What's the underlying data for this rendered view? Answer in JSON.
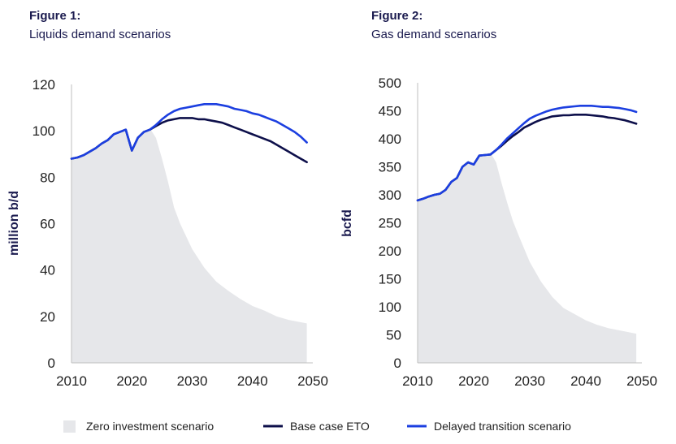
{
  "legend": [
    {
      "label": "Zero investment scenario",
      "color": "#e6e7ea",
      "kind": "area"
    },
    {
      "label": "Base case ETO",
      "color": "#0d0f4a",
      "kind": "line"
    },
    {
      "label": "Delayed transition scenario",
      "color": "#1c3fe0",
      "kind": "line"
    }
  ],
  "chart_data": [
    {
      "type": "line",
      "title": "Figure 1:",
      "subtitle": "Liquids demand scenarios",
      "ylabel": "million b/d",
      "xlabel": "",
      "xlim": [
        2010,
        2050
      ],
      "ylim": [
        0,
        120
      ],
      "xticks": [
        2010,
        2020,
        2030,
        2040,
        2050
      ],
      "yticks": [
        0,
        20,
        40,
        60,
        80,
        100,
        120
      ],
      "grid": false,
      "legend_position": "bottom",
      "area": {
        "name": "Zero investment scenario",
        "x": [
          2010,
          2012,
          2014,
          2016,
          2018,
          2019,
          2020,
          2021,
          2022,
          2023,
          2024,
          2025,
          2026,
          2027,
          2028,
          2030,
          2032,
          2034,
          2036,
          2038,
          2040,
          2042,
          2044,
          2046,
          2048,
          2049
        ],
        "values": [
          88,
          89,
          92,
          96,
          99,
          100.5,
          91.5,
          97,
          100,
          101,
          97,
          88,
          78,
          67,
          60,
          49,
          41,
          35,
          31,
          27.5,
          24.5,
          22.5,
          20,
          18.5,
          17.5,
          17
        ]
      },
      "series": [
        {
          "name": "Base case ETO",
          "color": "#0d0f4a",
          "x": [
            2010,
            2011,
            2012,
            2013,
            2014,
            2015,
            2016,
            2017,
            2018,
            2019,
            2020,
            2021,
            2022,
            2023,
            2024,
            2025,
            2026,
            2027,
            2028,
            2029,
            2030,
            2031,
            2032,
            2033,
            2034,
            2035,
            2036,
            2037,
            2038,
            2039,
            2040,
            2041,
            2042,
            2043,
            2044,
            2045,
            2046,
            2047,
            2048,
            2049
          ],
          "values": [
            88,
            88.5,
            89.5,
            91,
            92.5,
            94.5,
            96,
            98.5,
            99.5,
            100.5,
            91.5,
            97,
            99.5,
            100.5,
            102,
            103.5,
            104.5,
            105,
            105.5,
            105.5,
            105.5,
            105,
            105,
            104.5,
            104,
            103.5,
            102.5,
            101.5,
            100.5,
            99.5,
            98.5,
            97.5,
            96.5,
            95.5,
            94,
            92.5,
            91,
            89.5,
            88,
            86.5
          ]
        },
        {
          "name": "Delayed transition scenario",
          "color": "#1c3fe0",
          "x": [
            2010,
            2011,
            2012,
            2013,
            2014,
            2015,
            2016,
            2017,
            2018,
            2019,
            2020,
            2021,
            2022,
            2023,
            2024,
            2025,
            2026,
            2027,
            2028,
            2029,
            2030,
            2031,
            2032,
            2033,
            2034,
            2035,
            2036,
            2037,
            2038,
            2039,
            2040,
            2041,
            2042,
            2043,
            2044,
            2045,
            2046,
            2047,
            2048,
            2049
          ],
          "values": [
            88,
            88.5,
            89.5,
            91,
            92.5,
            94.5,
            96,
            98.5,
            99.5,
            100.5,
            91.5,
            97,
            99.5,
            100.5,
            102.5,
            105,
            107,
            108.5,
            109.5,
            110,
            110.5,
            111,
            111.5,
            111.5,
            111.5,
            111,
            110.5,
            109.5,
            109,
            108.5,
            107.5,
            107,
            106,
            105,
            104,
            102.5,
            101,
            99.5,
            97.5,
            95
          ]
        }
      ]
    },
    {
      "type": "line",
      "title": "Figure 2:",
      "subtitle": "Gas demand scenarios",
      "ylabel": "bcfd",
      "xlabel": "",
      "xlim": [
        2010,
        2050
      ],
      "ylim": [
        0,
        500
      ],
      "xticks": [
        2010,
        2020,
        2030,
        2040,
        2050
      ],
      "yticks": [
        0,
        50,
        100,
        150,
        200,
        250,
        300,
        350,
        400,
        450,
        500
      ],
      "grid": false,
      "legend_position": "bottom",
      "area": {
        "name": "Zero investment scenario",
        "x": [
          2010,
          2012,
          2014,
          2015,
          2016,
          2017,
          2018,
          2019,
          2020,
          2021,
          2022,
          2023,
          2024,
          2025,
          2026,
          2027,
          2028,
          2030,
          2032,
          2034,
          2036,
          2038,
          2040,
          2042,
          2044,
          2046,
          2048,
          2049
        ],
        "values": [
          290,
          297,
          302,
          309,
          323,
          330,
          350,
          358,
          354,
          370,
          372,
          375,
          358,
          320,
          285,
          253,
          228,
          180,
          145,
          118,
          98,
          87,
          76,
          68,
          62,
          58,
          54,
          52
        ]
      },
      "series": [
        {
          "name": "Base case ETO",
          "color": "#0d0f4a",
          "x": [
            2010,
            2011,
            2012,
            2013,
            2014,
            2015,
            2016,
            2017,
            2018,
            2019,
            2020,
            2021,
            2022,
            2023,
            2024,
            2025,
            2026,
            2027,
            2028,
            2029,
            2030,
            2031,
            2032,
            2033,
            2034,
            2035,
            2036,
            2037,
            2038,
            2039,
            2040,
            2041,
            2042,
            2043,
            2044,
            2045,
            2046,
            2047,
            2048,
            2049
          ],
          "values": [
            290,
            293,
            297,
            300,
            302,
            309,
            323,
            330,
            350,
            358,
            354,
            370,
            371,
            372,
            380,
            388,
            397,
            405,
            412,
            420,
            425,
            430,
            434,
            437,
            440,
            441,
            442,
            442,
            443,
            443,
            443,
            442,
            441,
            440,
            438,
            437,
            435,
            433,
            430,
            427
          ]
        },
        {
          "name": "Delayed transition scenario",
          "color": "#1c3fe0",
          "x": [
            2010,
            2011,
            2012,
            2013,
            2014,
            2015,
            2016,
            2017,
            2018,
            2019,
            2020,
            2021,
            2022,
            2023,
            2024,
            2025,
            2026,
            2027,
            2028,
            2029,
            2030,
            2031,
            2032,
            2033,
            2034,
            2035,
            2036,
            2037,
            2038,
            2039,
            2040,
            2041,
            2042,
            2043,
            2044,
            2045,
            2046,
            2047,
            2048,
            2049
          ],
          "values": [
            290,
            293,
            297,
            300,
            302,
            309,
            323,
            330,
            350,
            358,
            354,
            370,
            371,
            372,
            380,
            390,
            401,
            410,
            419,
            428,
            436,
            441,
            445,
            449,
            452,
            454,
            456,
            457,
            458,
            459,
            459,
            459,
            458,
            457,
            457,
            456,
            455,
            453,
            451,
            448
          ]
        }
      ]
    }
  ]
}
